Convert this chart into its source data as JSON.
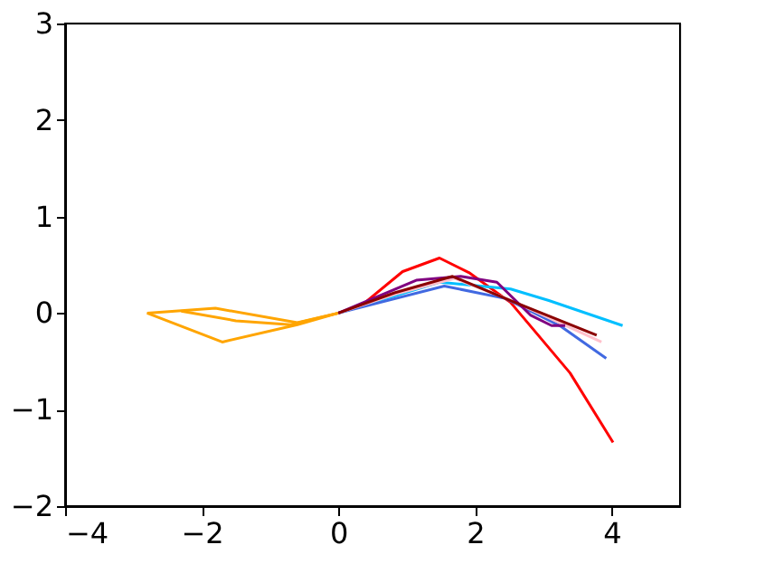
{
  "chart_data": {
    "type": "line",
    "xlim": [
      -4,
      5
    ],
    "ylim": [
      -2,
      3
    ],
    "xticks": [
      -4,
      -2,
      0,
      2,
      4
    ],
    "yticks": [
      -2,
      -1,
      0,
      1,
      2,
      3
    ],
    "grid": false,
    "legend": false,
    "marker": "none",
    "line_style": "solid",
    "series": [
      {
        "color": "#ffa500",
        "x": [
          0,
          -0.6,
          -1.8,
          -2.8
        ],
        "values": [
          0,
          -0.1,
          0.05,
          0
        ]
      },
      {
        "color": "#ffa500",
        "x": [
          -2.8,
          -1.7,
          -0.6,
          0
        ],
        "values": [
          0,
          -0.3,
          -0.12,
          0
        ]
      },
      {
        "color": "#ffa500",
        "x": [
          0,
          -0.7,
          -1.5,
          -2.3
        ],
        "values": [
          0,
          -0.12,
          -0.08,
          0.02
        ]
      },
      {
        "color": "#ff0000",
        "x": [
          0,
          0.34,
          0.94,
          1.48,
          1.91,
          2.52,
          3.39,
          4.02
        ],
        "values": [
          0,
          0.08,
          0.43,
          0.57,
          0.42,
          0.11,
          -0.62,
          -1.34
        ]
      },
      {
        "color": "#00bfff",
        "x": [
          0,
          1.48,
          2.52,
          3.08,
          4.16
        ],
        "values": [
          0,
          0.32,
          0.25,
          0.13,
          -0.13
        ]
      },
      {
        "color": "#4169e1",
        "x": [
          0,
          1.55,
          2.45,
          3.24,
          3.92
        ],
        "values": [
          0,
          0.28,
          0.15,
          -0.13,
          -0.47
        ]
      },
      {
        "color": "#ffc0cb",
        "x": [
          0,
          0.85,
          1.7,
          2.5,
          3.85
        ],
        "values": [
          0,
          0.2,
          0.36,
          0.14,
          -0.3
        ]
      },
      {
        "color": "#800080",
        "x": [
          0,
          1.14,
          1.79,
          2.32,
          2.81,
          3.12,
          3.32
        ],
        "values": [
          0,
          0.34,
          0.38,
          0.32,
          -0.02,
          -0.13,
          -0.13
        ]
      },
      {
        "color": "#8b0000",
        "x": [
          0,
          0.82,
          1.67,
          2.52,
          3.78
        ],
        "values": [
          0,
          0.21,
          0.38,
          0.13,
          -0.23
        ]
      }
    ]
  }
}
